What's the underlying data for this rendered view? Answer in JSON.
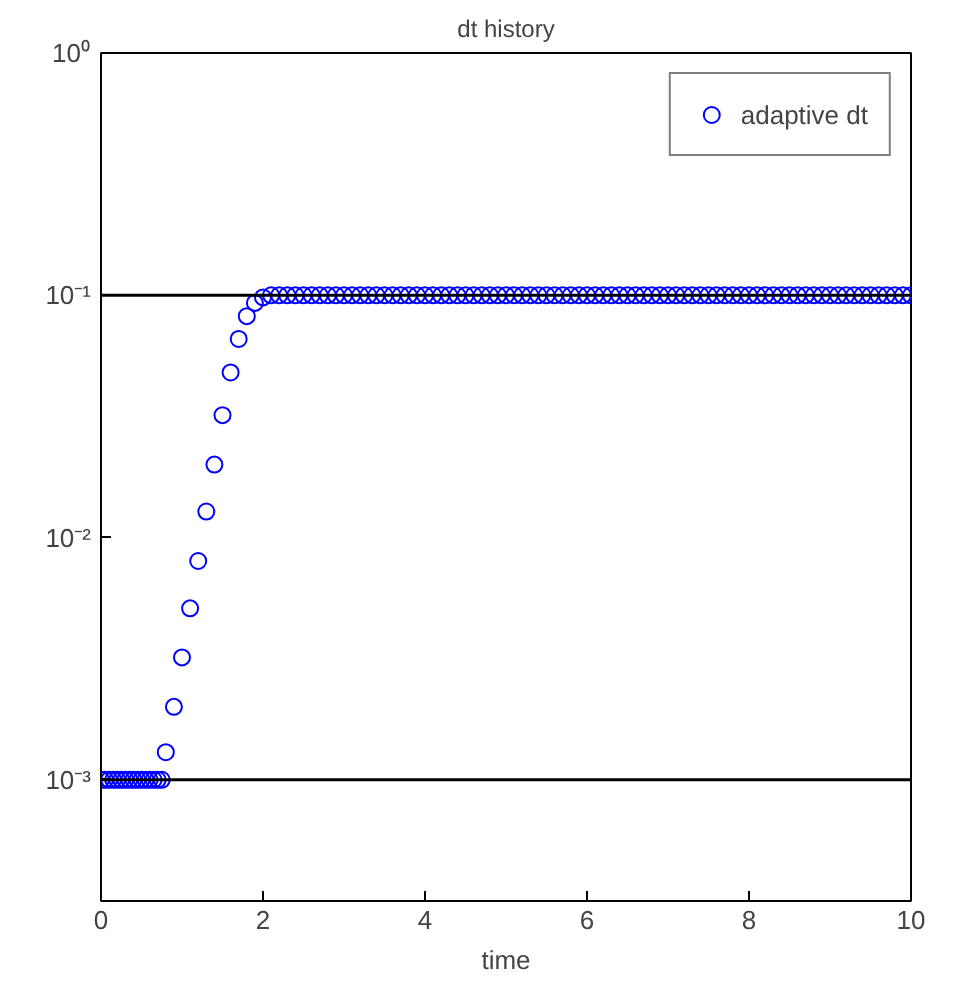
{
  "chart_data": {
    "type": "scatter",
    "title": "dt history",
    "xlabel": "time",
    "xlim": [
      0,
      10
    ],
    "xticks": [
      0,
      2,
      4,
      6,
      8,
      10
    ],
    "ylim": [
      0.000316,
      1
    ],
    "log": "y",
    "yticks": [
      {
        "value": 0.001,
        "label": "10⁻³"
      },
      {
        "value": 0.01,
        "label": "10⁻²"
      },
      {
        "value": 0.1,
        "label": "10⁻¹"
      },
      {
        "value": 1,
        "label": "10⁰"
      }
    ],
    "grid": false,
    "legend": "top right",
    "marker": "circle",
    "ref_lines": [
      {
        "axis": "y",
        "value": 0.1,
        "color": "#000000"
      },
      {
        "axis": "y",
        "value": 0.001,
        "color": "#000000"
      }
    ],
    "series": [
      {
        "name": "adaptive dt",
        "color": "#0000ff",
        "x": [
          0,
          0.05,
          0.1,
          0.15,
          0.2,
          0.25,
          0.3,
          0.35,
          0.4,
          0.45,
          0.5,
          0.55,
          0.6,
          0.65,
          0.7,
          0.75,
          0.8,
          0.9,
          1.0,
          1.1,
          1.2,
          1.3,
          1.4,
          1.5,
          1.6,
          1.7,
          1.8,
          1.9,
          2.0,
          2.1,
          2.2,
          2.3,
          2.4,
          2.5,
          2.6,
          2.7,
          2.8,
          2.9,
          3.0,
          3.1,
          3.2,
          3.3,
          3.4,
          3.5,
          3.6,
          3.7,
          3.8,
          3.9,
          4.0,
          4.1,
          4.2,
          4.3,
          4.4,
          4.5,
          4.6,
          4.7,
          4.8,
          4.9,
          5.0,
          5.1,
          5.2,
          5.3,
          5.4,
          5.5,
          5.6,
          5.7,
          5.8,
          5.9,
          6.0,
          6.1,
          6.2,
          6.3,
          6.4,
          6.5,
          6.6,
          6.7,
          6.8,
          6.9,
          7.0,
          7.1,
          7.2,
          7.3,
          7.4,
          7.5,
          7.6,
          7.7,
          7.8,
          7.9,
          8.0,
          8.1,
          8.2,
          8.3,
          8.4,
          8.5,
          8.6,
          8.7,
          8.8,
          8.9,
          9.0,
          9.1,
          9.2,
          9.3,
          9.4,
          9.5,
          9.6,
          9.7,
          9.8,
          9.9,
          10.0
        ],
        "values": [
          0.001,
          0.001,
          0.001,
          0.001,
          0.001,
          0.001,
          0.001,
          0.001,
          0.001,
          0.001,
          0.001,
          0.001,
          0.001,
          0.001,
          0.001,
          0.001,
          0.0013,
          0.002,
          0.0032,
          0.0051,
          0.008,
          0.0128,
          0.02,
          0.032,
          0.048,
          0.066,
          0.082,
          0.093,
          0.098,
          0.1,
          0.1,
          0.1,
          0.1,
          0.1,
          0.1,
          0.1,
          0.1,
          0.1,
          0.1,
          0.1,
          0.1,
          0.1,
          0.1,
          0.1,
          0.1,
          0.1,
          0.1,
          0.1,
          0.1,
          0.1,
          0.1,
          0.1,
          0.1,
          0.1,
          0.1,
          0.1,
          0.1,
          0.1,
          0.1,
          0.1,
          0.1,
          0.1,
          0.1,
          0.1,
          0.1,
          0.1,
          0.1,
          0.1,
          0.1,
          0.1,
          0.1,
          0.1,
          0.1,
          0.1,
          0.1,
          0.1,
          0.1,
          0.1,
          0.1,
          0.1,
          0.1,
          0.1,
          0.1,
          0.1,
          0.1,
          0.1,
          0.1,
          0.1,
          0.1,
          0.1,
          0.1,
          0.1,
          0.1,
          0.1,
          0.1,
          0.1,
          0.1,
          0.1,
          0.1,
          0.1,
          0.1,
          0.1,
          0.1,
          0.1,
          0.1,
          0.1,
          0.1,
          0.1,
          0.1
        ]
      }
    ]
  }
}
